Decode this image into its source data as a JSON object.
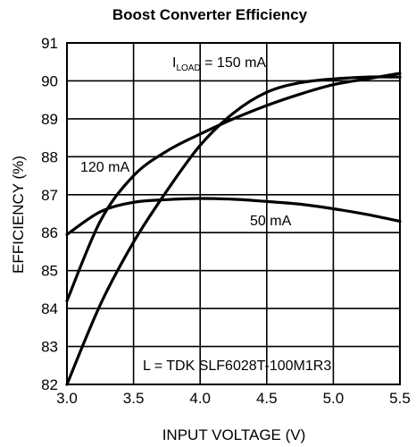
{
  "chart_data": {
    "type": "line",
    "title": "Boost Converter Efficiency",
    "xlabel": "INPUT VOLTAGE (V)",
    "ylabel": "EFFICIENCY (%)",
    "xlim": [
      3.0,
      5.5
    ],
    "ylim": [
      82,
      91
    ],
    "x_ticks": [
      "3.0",
      "3.5",
      "4.0",
      "4.5",
      "5.0",
      "5.5"
    ],
    "y_ticks": [
      "82",
      "83",
      "84",
      "85",
      "86",
      "87",
      "88",
      "89",
      "90",
      "91"
    ],
    "grid": true,
    "series": [
      {
        "name": "150 mA",
        "x": [
          3.0,
          3.25,
          3.5,
          3.75,
          4.0,
          4.25,
          4.5,
          4.75,
          5.0,
          5.25,
          5.5
        ],
        "y": [
          81.9,
          84.1,
          85.75,
          87.1,
          88.3,
          89.15,
          89.7,
          89.95,
          90.05,
          90.1,
          90.1
        ]
      },
      {
        "name": "120 mA",
        "x": [
          3.0,
          3.25,
          3.5,
          3.75,
          4.0,
          4.25,
          4.5,
          4.75,
          5.0,
          5.25,
          5.5
        ],
        "y": [
          84.2,
          86.3,
          87.5,
          88.15,
          88.6,
          89.0,
          89.35,
          89.65,
          89.9,
          90.05,
          90.2
        ]
      },
      {
        "name": "50 mA",
        "x": [
          3.0,
          3.25,
          3.5,
          3.75,
          4.0,
          4.25,
          4.5,
          4.75,
          5.0,
          5.25,
          5.5
        ],
        "y": [
          85.95,
          86.55,
          86.8,
          86.87,
          86.9,
          86.88,
          86.82,
          86.75,
          86.63,
          86.48,
          86.3
        ]
      }
    ],
    "annotations": {
      "iload_prefix": "I",
      "iload_sub": "LOAD",
      "iload_suffix": " = 150 mA",
      "label_120": "120 mA",
      "label_50": "50 mA",
      "inductor": "L = TDK SLF6028T-100M1R3"
    }
  }
}
